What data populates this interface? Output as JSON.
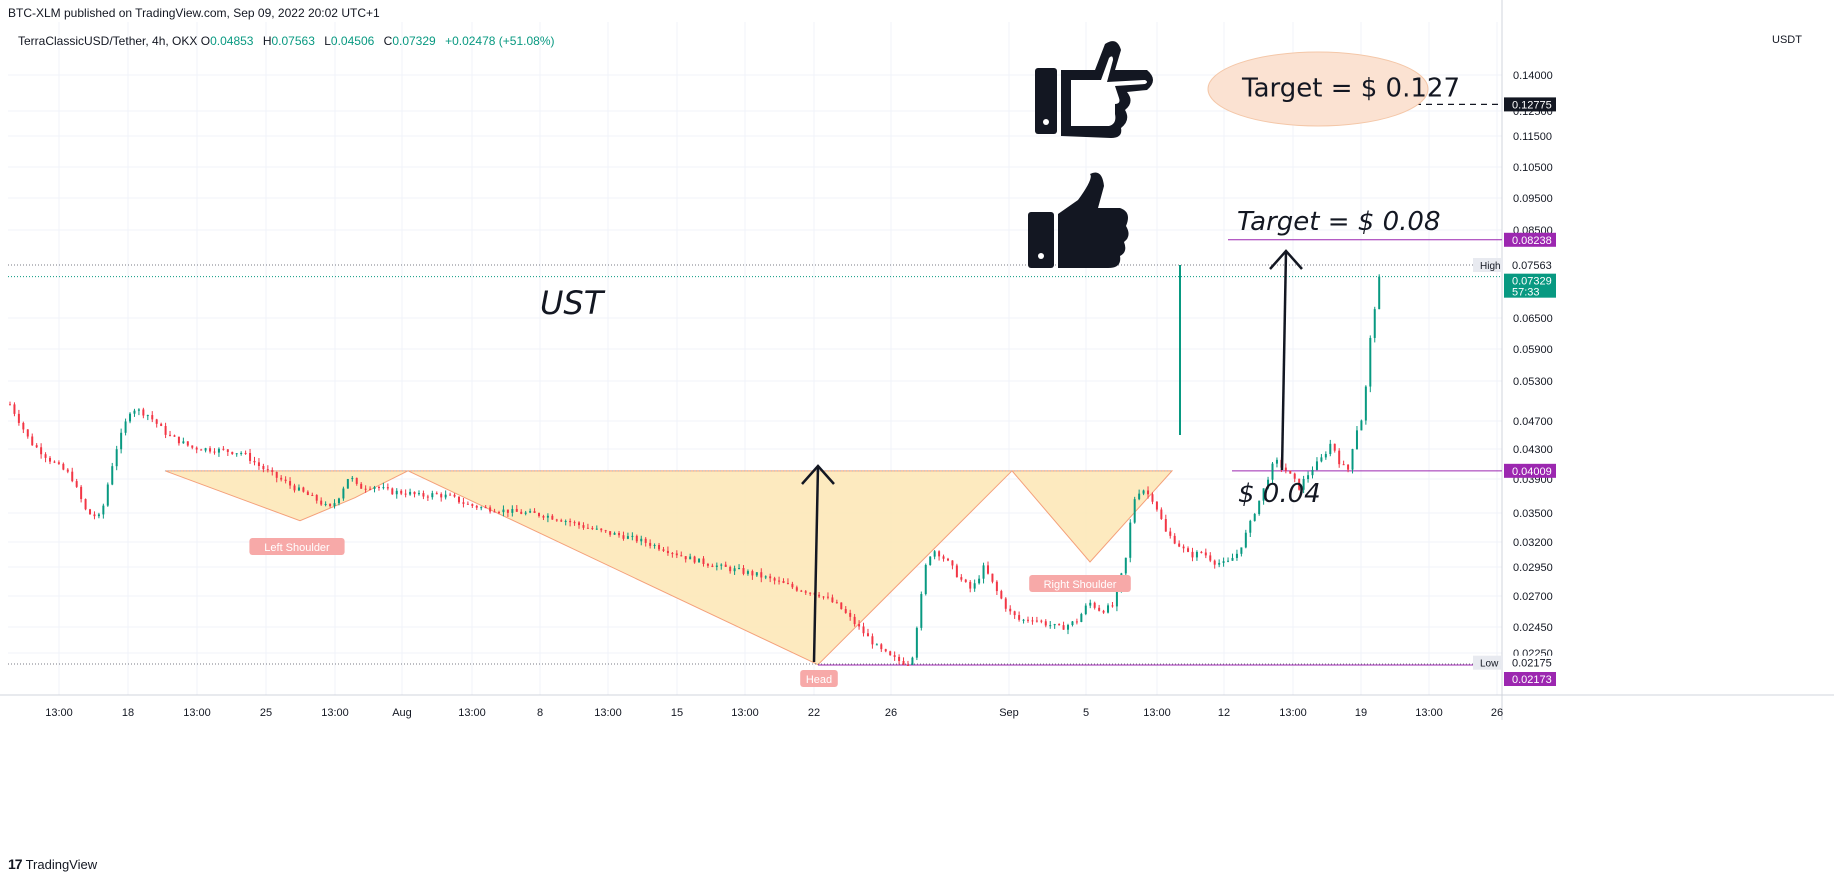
{
  "header": {
    "published": "BTC-XLM published on TradingView.com, Sep 09, 2022 20:02 UTC+1",
    "symbol": "TerraClassicUSD/Tether, 4h, OKX",
    "o_label": "O",
    "o_value": "0.04853",
    "h_label": "H",
    "h_value": "0.07563",
    "l_label": "L",
    "l_value": "0.04506",
    "c_label": "C",
    "c_value": "0.07329",
    "change": "+0.02478 (+51.08%)",
    "currency": "USDT"
  },
  "footer": {
    "brand": "TradingView",
    "logo_text": "17"
  },
  "colors": {
    "up": "#089981",
    "down": "#f23645",
    "pattern_fill": "#fde8b8",
    "purple": "#9c27b0",
    "target_ellipse": "#fbe2d2"
  },
  "chart_data": {
    "type": "candlestick",
    "y_ticks": [
      0.14,
      0.125,
      0.115,
      0.105,
      0.095,
      0.085,
      0.065,
      0.059,
      0.053,
      0.047,
      0.043,
      0.039,
      0.035,
      0.032,
      0.0295,
      0.027,
      0.0245,
      0.0225
    ],
    "y_tick_labels": [
      "0.14000",
      "0.12500",
      "0.11500",
      "0.10500",
      "0.09500",
      "0.08500",
      "0.06500",
      "0.05900",
      "0.05300",
      "0.04700",
      "0.04300",
      "0.03900",
      "0.03500",
      "0.03200",
      "0.02950",
      "0.02700",
      "0.02450",
      "0.02250"
    ],
    "x_ticks": [
      "13:00",
      "18",
      "13:00",
      "25",
      "13:00",
      "Aug",
      "13:00",
      "8",
      "13:00",
      "15",
      "13:00",
      "22",
      "26",
      "Sep",
      "5",
      "13:00",
      "12",
      "13:00",
      "19",
      "13:00",
      "26"
    ],
    "price_labels": [
      {
        "text": "0.12775",
        "value": 0.12775,
        "style": "black"
      },
      {
        "text": "0.08238",
        "value": 0.08238,
        "style": "purple"
      },
      {
        "text": "0.07563",
        "value": 0.07563,
        "style": "plain",
        "tag": "High"
      },
      {
        "text": "0.07329",
        "value": 0.07329,
        "style": "green",
        "sub": "57:33"
      },
      {
        "text": "0.04009",
        "value": 0.04009,
        "style": "purple"
      },
      {
        "text": "0.02175",
        "value": 0.02175,
        "style": "plain",
        "tag": "Low"
      },
      {
        "text": "0.02173",
        "value": 0.02173,
        "style": "purple"
      }
    ],
    "pattern_labels": [
      "Left Shoulder",
      "Head",
      "Right Shoulder"
    ],
    "annotations": {
      "title": "UST",
      "target1": "Target = $ 0.08",
      "target2": "Target = $ 0.127",
      "support": "$ 0.04"
    },
    "neckline": 0.04009,
    "low": 0.02173,
    "high": 0.07563,
    "last": 0.07329,
    "path": [
      [
        0,
        0.0495
      ],
      [
        10,
        0.044
      ],
      [
        20,
        0.0415
      ],
      [
        30,
        0.0395
      ],
      [
        38,
        0.035
      ],
      [
        45,
        0.0345
      ],
      [
        52,
        0.0425
      ],
      [
        60,
        0.049
      ],
      [
        68,
        0.048
      ],
      [
        78,
        0.045
      ],
      [
        90,
        0.0432
      ],
      [
        105,
        0.0428
      ],
      [
        115,
        0.0425
      ],
      [
        123,
        0.0408
      ],
      [
        132,
        0.0392
      ],
      [
        142,
        0.0378
      ],
      [
        152,
        0.0365
      ],
      [
        158,
        0.0355
      ],
      [
        162,
        0.0366
      ],
      [
        168,
        0.0395
      ],
      [
        172,
        0.038
      ],
      [
        180,
        0.0382
      ],
      [
        188,
        0.0375
      ],
      [
        196,
        0.0374
      ],
      [
        203,
        0.037
      ],
      [
        210,
        0.0372
      ],
      [
        218,
        0.0369
      ],
      [
        226,
        0.036
      ],
      [
        234,
        0.0356
      ],
      [
        244,
        0.0353
      ],
      [
        254,
        0.035
      ],
      [
        264,
        0.0348
      ],
      [
        274,
        0.0343
      ],
      [
        284,
        0.0336
      ],
      [
        294,
        0.033
      ],
      [
        304,
        0.0326
      ],
      [
        314,
        0.032
      ],
      [
        324,
        0.0313
      ],
      [
        334,
        0.0305
      ],
      [
        344,
        0.0299
      ],
      [
        352,
        0.0295
      ],
      [
        360,
        0.0292
      ],
      [
        370,
        0.0288
      ],
      [
        380,
        0.0282
      ],
      [
        390,
        0.0276
      ],
      [
        400,
        0.0272
      ],
      [
        410,
        0.0262
      ],
      [
        418,
        0.0248
      ],
      [
        424,
        0.0238
      ],
      [
        430,
        0.0228
      ],
      [
        436,
        0.0222
      ],
      [
        442,
        0.0219
      ],
      [
        446,
        0.0218
      ],
      [
        450,
        0.0258
      ],
      [
        454,
        0.0305
      ],
      [
        458,
        0.0312
      ],
      [
        464,
        0.03
      ],
      [
        470,
        0.0285
      ],
      [
        476,
        0.0275
      ],
      [
        482,
        0.0295
      ],
      [
        488,
        0.0275
      ],
      [
        494,
        0.0258
      ],
      [
        500,
        0.025
      ],
      [
        506,
        0.0252
      ],
      [
        512,
        0.0248
      ],
      [
        520,
        0.0244
      ],
      [
        528,
        0.025
      ],
      [
        534,
        0.0265
      ],
      [
        540,
        0.0258
      ],
      [
        546,
        0.0262
      ],
      [
        552,
        0.03
      ],
      [
        556,
        0.0365
      ],
      [
        560,
        0.038
      ],
      [
        566,
        0.0365
      ],
      [
        572,
        0.033
      ],
      [
        578,
        0.0318
      ],
      [
        584,
        0.0306
      ],
      [
        590,
        0.031
      ],
      [
        596,
        0.03
      ],
      [
        602,
        0.0298
      ],
      [
        608,
        0.031
      ],
      [
        614,
        0.034
      ],
      [
        620,
        0.0375
      ],
      [
        626,
        0.0415
      ],
      [
        632,
        0.04
      ],
      [
        638,
        0.038
      ],
      [
        644,
        0.0402
      ],
      [
        650,
        0.042
      ],
      [
        654,
        0.044
      ],
      [
        658,
        0.0412
      ],
      [
        662,
        0.04
      ],
      [
        666,
        0.0455
      ],
      [
        670,
        0.048
      ],
      [
        674,
        0.064
      ],
      [
        678,
        0.0733
      ]
    ]
  }
}
